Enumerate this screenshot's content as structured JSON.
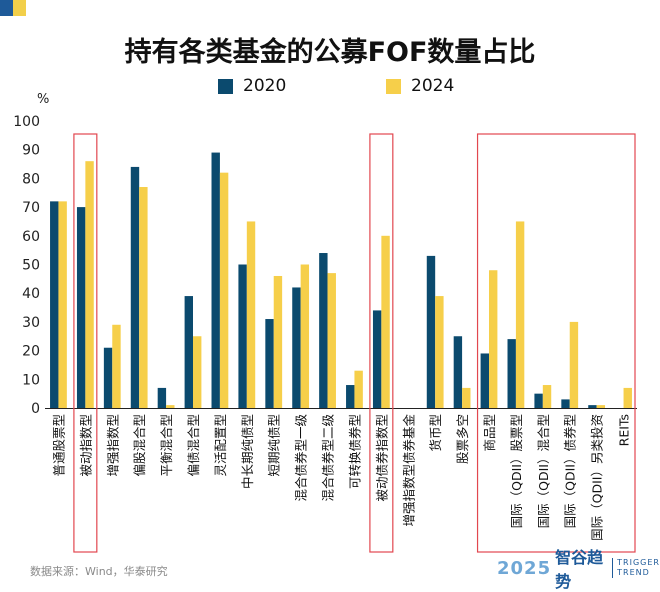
{
  "chart_data": {
    "type": "bar",
    "title": "持有各类基金的公募FOF数量占比",
    "ylabel": "%",
    "ylim": [
      0,
      100
    ],
    "yticks": [
      0,
      10,
      20,
      30,
      40,
      50,
      60,
      70,
      80,
      90,
      100
    ],
    "grid": false,
    "legend_position": "top",
    "categories": [
      "普通股票型",
      "被动指数型",
      "增强指数型",
      "偏股混合型",
      "平衡混合型",
      "偏债混合型",
      "灵活配置型",
      "中长期纯债型",
      "短期纯债型",
      "混合债券型一级",
      "混合债券型二级",
      "可转换债券型",
      "被动债券指数型",
      "增强指数型债券基金",
      "货币型",
      "股票多空",
      "商品型",
      "国际（QDII）股票型",
      "国际（QDII）混合型",
      "国际（QDII）债券型",
      "国际（QDII）另类投资",
      "REITs"
    ],
    "series": [
      {
        "name": "2020",
        "color": "#0b4a6e",
        "values": [
          72,
          70,
          21,
          84,
          7,
          39,
          89,
          50,
          31,
          42,
          54,
          8,
          34,
          0,
          53,
          25,
          19,
          24,
          5,
          3,
          1,
          0
        ]
      },
      {
        "name": "2024",
        "color": "#f6cf4a",
        "values": [
          72,
          86,
          29,
          77,
          1,
          25,
          82,
          65,
          46,
          50,
          47,
          13,
          60,
          0,
          39,
          7,
          48,
          65,
          8,
          30,
          1,
          7
        ]
      }
    ],
    "highlight_boxes": [
      [
        1,
        1
      ],
      [
        12,
        12
      ],
      [
        16,
        21
      ]
    ],
    "highlight_color": "#e2474f"
  },
  "footer": {
    "source": "数据来源：Wind，华泰研究",
    "brand_year": "2025",
    "brand_name": "智谷趋势",
    "brand_en_1": "TRIGGER",
    "brand_en_2": "TREND"
  }
}
